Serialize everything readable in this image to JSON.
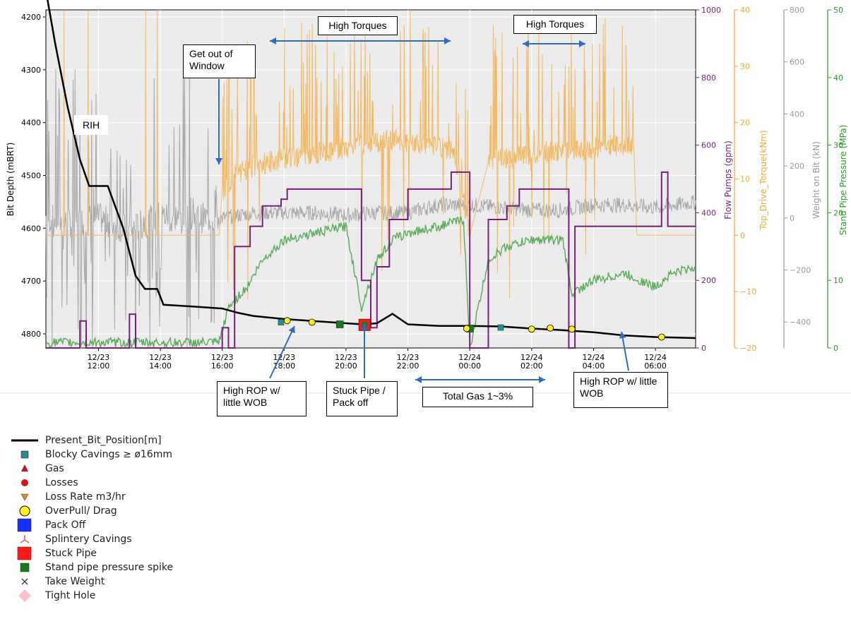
{
  "chart_data": {
    "type": "line",
    "x_ticks": [
      "12/23\n12:00",
      "12/23\n14:00",
      "12/23\n16:00",
      "12/23\n18:00",
      "12/23\n20:00",
      "12/23\n22:00",
      "12/24\n00:00",
      "12/24\n02:00",
      "12/24\n04:00",
      "12/24\n06:00"
    ],
    "x_range_hours": [
      10.3,
      31.3
    ],
    "x_tick_hours": [
      12,
      14,
      16,
      18,
      20,
      22,
      24,
      26,
      28,
      30
    ],
    "y_left": {
      "label": "Bit Depth (mBRT)",
      "range": [
        4200,
        4820
      ],
      "ticks": [
        4200,
        4300,
        4400,
        4500,
        4600,
        4700,
        4800
      ],
      "inverted": true
    },
    "y_flow": {
      "label": "Flow Pumps (gpm)",
      "range": [
        0,
        1000
      ],
      "ticks": [
        0,
        200,
        400,
        600,
        800,
        1000
      ]
    },
    "y_torque": {
      "label": "Top_Drive_Torque(kNm)",
      "range": [
        -20,
        40
      ],
      "ticks": [
        -20,
        -10,
        0,
        10,
        20,
        30,
        40
      ]
    },
    "y_wob": {
      "label": "Weight on Bit (kN)",
      "range": [
        -500,
        800
      ],
      "ticks": [
        -400,
        -200,
        0,
        200,
        400,
        600,
        800
      ]
    },
    "y_spp": {
      "label": "Stand Pipe Pressure (MPa)",
      "range": [
        0,
        50
      ],
      "ticks": [
        0,
        10,
        20,
        30,
        40,
        50
      ]
    },
    "series": [
      {
        "name": "Present_Bit_Position[m]",
        "color": "#000000",
        "points": [
          [
            10.3,
            4150
          ],
          [
            10.6,
            4250
          ],
          [
            11.0,
            4370
          ],
          [
            11.4,
            4470
          ],
          [
            11.7,
            4520
          ],
          [
            12.3,
            4520
          ],
          [
            12.8,
            4600
          ],
          [
            13.2,
            4690
          ],
          [
            13.5,
            4715
          ],
          [
            13.9,
            4715
          ],
          [
            14.1,
            4745
          ],
          [
            15.0,
            4748
          ],
          [
            16.0,
            4752
          ],
          [
            16.5,
            4760
          ],
          [
            17.0,
            4766
          ],
          [
            18.0,
            4772
          ],
          [
            19.0,
            4776
          ],
          [
            20.0,
            4780
          ],
          [
            20.5,
            4782
          ],
          [
            21.0,
            4780
          ],
          [
            21.5,
            4762
          ],
          [
            22.0,
            4782
          ],
          [
            23.0,
            4785
          ],
          [
            24.0,
            4785
          ],
          [
            25.0,
            4786
          ],
          [
            26.0,
            4790
          ],
          [
            27.0,
            4793
          ],
          [
            28.0,
            4797
          ],
          [
            29.0,
            4803
          ],
          [
            30.0,
            4806
          ],
          [
            31.3,
            4808
          ]
        ]
      },
      {
        "name": "Flow Pumps (gpm)",
        "color": "#7a1e7e",
        "points": [
          [
            10.3,
            0
          ],
          [
            11.3,
            0
          ],
          [
            11.4,
            80
          ],
          [
            11.6,
            0
          ],
          [
            12.9,
            0
          ],
          [
            13.0,
            100
          ],
          [
            13.2,
            0
          ],
          [
            15.8,
            0
          ],
          [
            16.0,
            60
          ],
          [
            16.2,
            0
          ],
          [
            16.4,
            300
          ],
          [
            16.9,
            360
          ],
          [
            17.3,
            420
          ],
          [
            17.9,
            440
          ],
          [
            18.1,
            470
          ],
          [
            19.0,
            470
          ],
          [
            19.4,
            470
          ],
          [
            20.2,
            470
          ],
          [
            20.5,
            200
          ],
          [
            20.8,
            60
          ],
          [
            21.0,
            240
          ],
          [
            21.4,
            380
          ],
          [
            22.0,
            470
          ],
          [
            23.2,
            470
          ],
          [
            23.4,
            520
          ],
          [
            23.8,
            520
          ],
          [
            24.0,
            0
          ],
          [
            24.4,
            0
          ],
          [
            24.6,
            380
          ],
          [
            25.2,
            420
          ],
          [
            25.6,
            470
          ],
          [
            27.0,
            470
          ],
          [
            27.2,
            0
          ],
          [
            27.4,
            360
          ],
          [
            29.0,
            360
          ],
          [
            29.5,
            360
          ],
          [
            30.0,
            360
          ],
          [
            30.2,
            520
          ],
          [
            30.4,
            360
          ],
          [
            31.3,
            360
          ]
        ]
      },
      {
        "name": "Top_Drive_Torque(kNm)",
        "color": "#f4b860",
        "points": [
          [
            10.3,
            0
          ],
          [
            15.9,
            0
          ],
          [
            16.0,
            8
          ],
          [
            16.5,
            11
          ],
          [
            17.5,
            13
          ],
          [
            18.5,
            14
          ],
          [
            19.5,
            15
          ],
          [
            20.5,
            16
          ],
          [
            21.5,
            17
          ],
          [
            22.5,
            16
          ],
          [
            23.5,
            15
          ],
          [
            24.0,
            0
          ],
          [
            24.6,
            13
          ],
          [
            25.5,
            14
          ],
          [
            26.5,
            15
          ],
          [
            27.5,
            15
          ],
          [
            28.5,
            16
          ],
          [
            29.3,
            16
          ],
          [
            29.4,
            0
          ],
          [
            31.3,
            0
          ]
        ]
      },
      {
        "name": "Weight on Bit (kN)",
        "color": "#a8a8a8",
        "points": [
          [
            10.3,
            0
          ],
          [
            11.0,
            -20
          ],
          [
            12.0,
            0
          ],
          [
            13.0,
            -50
          ],
          [
            14.0,
            10
          ],
          [
            15.0,
            0
          ],
          [
            16.0,
            0
          ],
          [
            17.0,
            20
          ],
          [
            18.0,
            20
          ],
          [
            19.0,
            20
          ],
          [
            20.0,
            10
          ],
          [
            21.0,
            20
          ],
          [
            22.0,
            20
          ],
          [
            23.0,
            50
          ],
          [
            24.0,
            50
          ],
          [
            25.0,
            40
          ],
          [
            26.0,
            30
          ],
          [
            27.0,
            30
          ],
          [
            28.0,
            50
          ],
          [
            29.0,
            50
          ],
          [
            30.0,
            40
          ],
          [
            31.3,
            60
          ]
        ]
      },
      {
        "name": "Stand Pipe Pressure (MPa)",
        "color": "#5aaa5a",
        "points": [
          [
            10.3,
            0.8
          ],
          [
            15.9,
            0.8
          ],
          [
            16.2,
            6
          ],
          [
            16.8,
            9
          ],
          [
            17.3,
            13
          ],
          [
            18.0,
            16
          ],
          [
            19.0,
            17
          ],
          [
            20.0,
            18
          ],
          [
            20.5,
            6
          ],
          [
            21.0,
            13
          ],
          [
            21.5,
            16
          ],
          [
            22.0,
            17
          ],
          [
            23.0,
            18
          ],
          [
            23.8,
            19
          ],
          [
            24.0,
            0
          ],
          [
            24.6,
            13
          ],
          [
            25.2,
            15
          ],
          [
            26.0,
            16
          ],
          [
            27.0,
            16
          ],
          [
            27.3,
            8
          ],
          [
            28.0,
            10
          ],
          [
            29.0,
            11
          ],
          [
            30.0,
            9
          ],
          [
            30.5,
            11
          ],
          [
            31.3,
            12
          ]
        ]
      }
    ],
    "events": [
      {
        "type": "blocky",
        "points": [
          [
            17.9,
            4778
          ],
          [
            25.0,
            4788
          ]
        ]
      },
      {
        "type": "spp_spike",
        "points": [
          [
            19.8,
            4782
          ],
          [
            24.0,
            4790
          ]
        ]
      },
      {
        "type": "stuck",
        "points": [
          [
            20.6,
            4783
          ]
        ]
      },
      {
        "type": "overpull",
        "points": [
          [
            18.1,
            4775
          ],
          [
            18.9,
            4778
          ],
          [
            23.9,
            4790
          ],
          [
            26.0,
            4791
          ],
          [
            26.6,
            4789
          ],
          [
            27.3,
            4791
          ],
          [
            30.2,
            4806
          ]
        ]
      }
    ],
    "annotations": {
      "high_torques_1": "High Torques",
      "high_torques_2": "High Torques",
      "window": "Get out of Window",
      "rih": "RIH",
      "rop_1": "High ROP w/ little WOB",
      "stuck": "Stuck Pipe / Pack off",
      "gas": "Total Gas 1~3%",
      "rop_2": "High ROP w/ little WOB"
    },
    "legend": [
      {
        "label": "Present_Bit_Position[m]",
        "symbol": "line",
        "color": "#000000"
      },
      {
        "label": "Blocky Cavings ≥ ø16mm",
        "symbol": "square-small",
        "color": "#2e8b8b"
      },
      {
        "label": "Gas",
        "symbol": "triangle-up",
        "color": "#cc1111"
      },
      {
        "label": "Losses",
        "symbol": "circle",
        "color": "#dd1111"
      },
      {
        "label": "Loss Rate m3/hr",
        "symbol": "triangle-down",
        "color": "#d9892a"
      },
      {
        "label": "OverPull/ Drag",
        "symbol": "circle-yellow",
        "color": "#ffee22"
      },
      {
        "label": "Pack Off",
        "symbol": "square-big",
        "color": "#1030ff"
      },
      {
        "label": "Splintery Cavings",
        "symbol": "tri-star",
        "color": "#e04040"
      },
      {
        "label": "Stuck Pipe",
        "symbol": "square-big",
        "color": "#ff1a1a"
      },
      {
        "label": "Stand pipe pressure spike",
        "symbol": "square-mid",
        "color": "#1a7a1a"
      },
      {
        "label": "Take Weight",
        "symbol": "x",
        "color": "#444444"
      },
      {
        "label": "Tight Hole",
        "symbol": "diamond",
        "color": "#ffbfc8"
      }
    ]
  }
}
